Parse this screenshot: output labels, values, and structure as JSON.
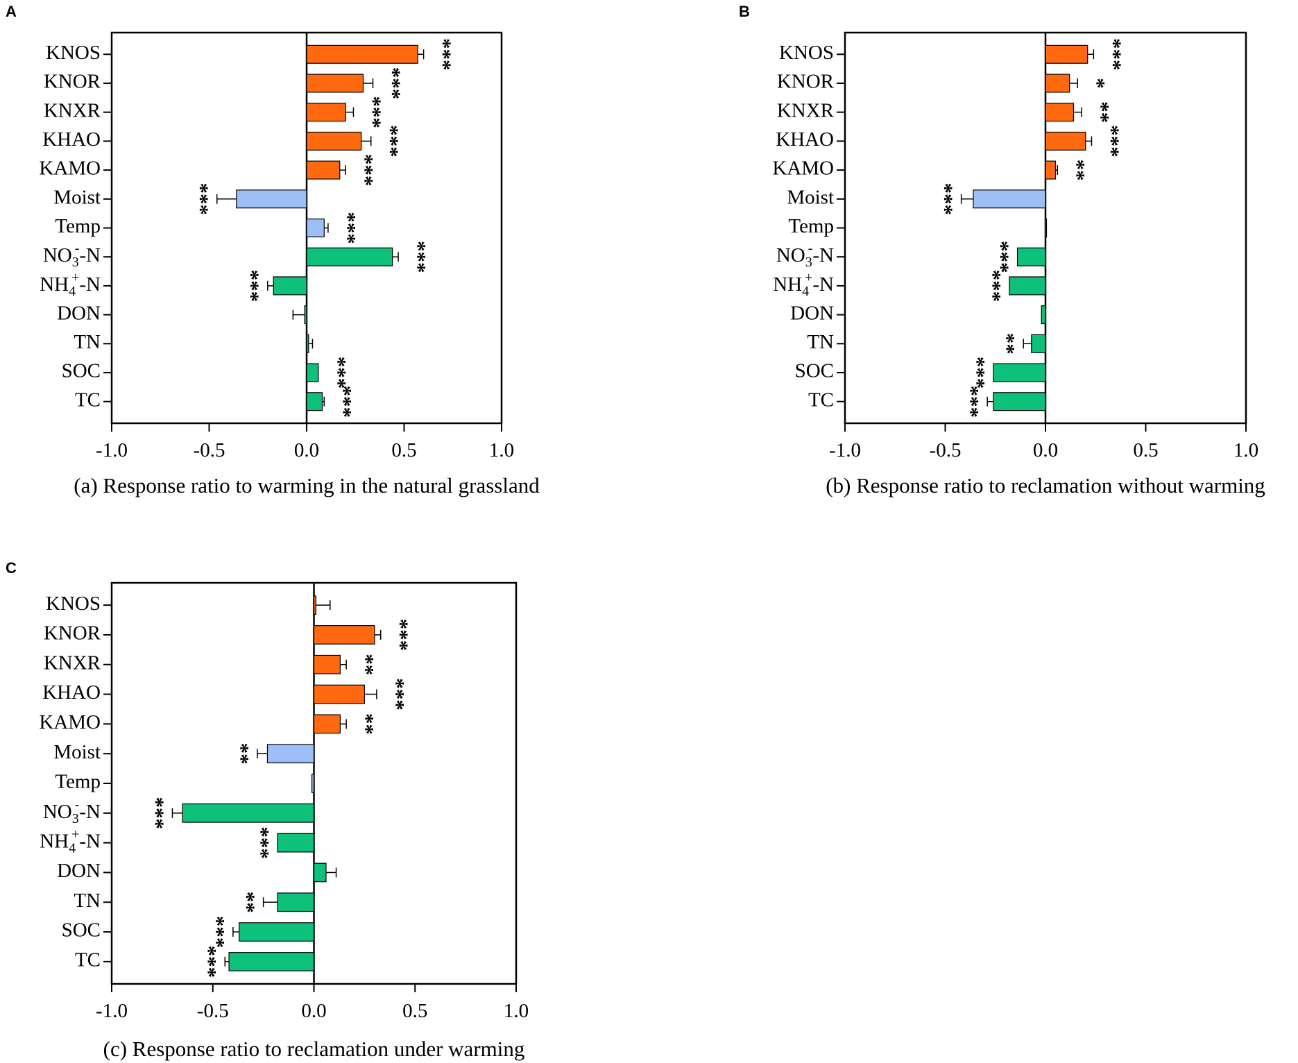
{
  "colors": {
    "orange": "#FF6A10",
    "blue": "#9DBFF5",
    "green": "#0EC17B",
    "frame": "#000000"
  },
  "chart_data": [
    {
      "type": "bar",
      "orientation": "horizontal",
      "panel_label": "A",
      "caption": "(a) Response ratio to warming in the natural grassland",
      "xlim": [
        -1.0,
        1.0
      ],
      "xticks": [
        "-1.0",
        "-0.5",
        "0.0",
        "0.5",
        "1.0"
      ],
      "categories": [
        "KNOS",
        "KNOR",
        "KNXR",
        "KHAO",
        "KAMO",
        "Moist",
        "Temp",
        "NO3--N",
        "NH4+-N",
        "DON",
        "TN",
        "SOC",
        "TC"
      ],
      "values": [
        0.57,
        0.29,
        0.2,
        0.28,
        0.17,
        -0.36,
        0.09,
        0.44,
        -0.17,
        -0.01,
        0.01,
        0.06,
        0.08
      ],
      "errors": [
        0.03,
        0.05,
        0.04,
        0.05,
        0.03,
        0.1,
        0.02,
        0.03,
        0.03,
        0.06,
        0.02,
        0.0,
        0.01
      ],
      "significance": [
        "***",
        "***",
        "***",
        "***",
        "***",
        "***",
        "***",
        "***",
        "***",
        "",
        "",
        "***",
        "***"
      ],
      "bar_colors": [
        "orange",
        "orange",
        "orange",
        "orange",
        "orange",
        "blue",
        "blue",
        "green",
        "green",
        "green",
        "green",
        "green",
        "green"
      ]
    },
    {
      "type": "bar",
      "orientation": "horizontal",
      "panel_label": "B",
      "caption": "(b) Response ratio to reclamation without warming",
      "xlim": [
        -1.0,
        1.0
      ],
      "xticks": [
        "-1.0",
        "-0.5",
        "0.0",
        "0.5",
        "1.0"
      ],
      "categories": [
        "KNOS",
        "KNOR",
        "KNXR",
        "KHAO",
        "KAMO",
        "Moist",
        "Temp",
        "NO3--N",
        "NH4+-N",
        "DON",
        "TN",
        "SOC",
        "TC"
      ],
      "values": [
        0.21,
        0.12,
        0.14,
        0.2,
        0.05,
        -0.36,
        0.0,
        -0.14,
        -0.18,
        -0.02,
        -0.07,
        -0.26,
        -0.26
      ],
      "errors": [
        0.03,
        0.04,
        0.04,
        0.03,
        0.01,
        0.06,
        0.0,
        0.0,
        0.0,
        0.0,
        0.04,
        0.0,
        0.03
      ],
      "significance": [
        "***",
        "*",
        "**",
        "***",
        "**",
        "***",
        "",
        "***",
        "***",
        "",
        "**",
        "***",
        "***"
      ],
      "bar_colors": [
        "orange",
        "orange",
        "orange",
        "orange",
        "orange",
        "blue",
        "blue",
        "green",
        "green",
        "green",
        "green",
        "green",
        "green"
      ]
    },
    {
      "type": "bar",
      "orientation": "horizontal",
      "panel_label": "C",
      "caption": "(c) Response ratio to reclamation under warming",
      "xlim": [
        -1.0,
        1.0
      ],
      "xticks": [
        "-1.0",
        "-0.5",
        "0.0",
        "0.5",
        "1.0"
      ],
      "categories": [
        "KNOS",
        "KNOR",
        "KNXR",
        "KHAO",
        "KAMO",
        "Moist",
        "Temp",
        "NO3--N",
        "NH4+-N",
        "DON",
        "TN",
        "SOC",
        "TC"
      ],
      "values": [
        0.01,
        0.3,
        0.13,
        0.25,
        0.13,
        -0.23,
        -0.01,
        -0.65,
        -0.18,
        0.06,
        -0.18,
        -0.37,
        -0.42
      ],
      "errors": [
        0.07,
        0.03,
        0.03,
        0.06,
        0.03,
        0.05,
        0.0,
        0.05,
        0.0,
        0.05,
        0.07,
        0.03,
        0.02
      ],
      "significance": [
        "",
        "***",
        "**",
        "***",
        "**",
        "**",
        "",
        "***",
        "***",
        "",
        "**",
        "***",
        "***"
      ],
      "bar_colors": [
        "orange",
        "orange",
        "orange",
        "orange",
        "orange",
        "blue",
        "blue",
        "green",
        "green",
        "green",
        "green",
        "green",
        "green"
      ]
    }
  ]
}
